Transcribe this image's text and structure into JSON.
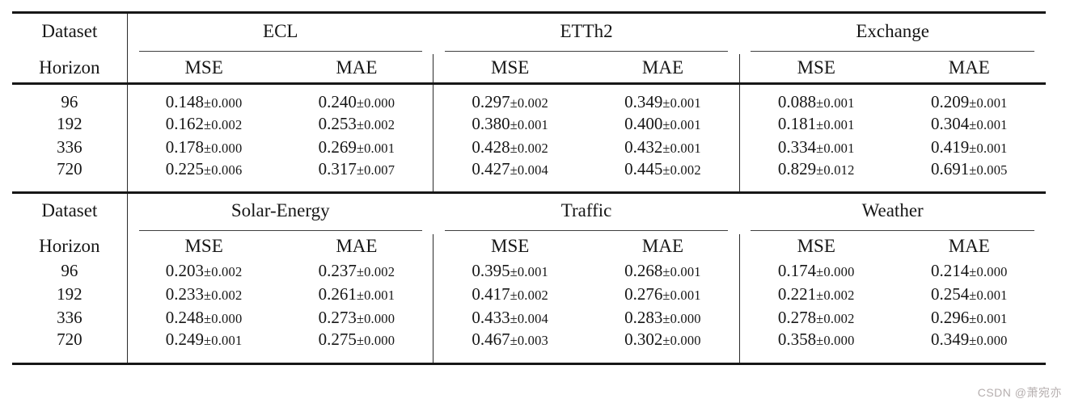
{
  "watermark": "CSDN @萧宛亦",
  "table": {
    "corner_label": "Dataset",
    "horizon_label": "Horizon",
    "sections": [
      {
        "groups": [
          {
            "name": "ECL"
          },
          {
            "name": "ETTh2"
          },
          {
            "name": "Exchange"
          }
        ],
        "metric_labels": [
          "MSE",
          "MAE",
          "MSE",
          "MAE",
          "MSE",
          "MAE"
        ],
        "rows": [
          {
            "horizon": "96",
            "values": [
              {
                "mean": "0.148",
                "std": "±0.000"
              },
              {
                "mean": "0.240",
                "std": "±0.000"
              },
              {
                "mean": "0.297",
                "std": "±0.002"
              },
              {
                "mean": "0.349",
                "std": "±0.001"
              },
              {
                "mean": "0.088",
                "std": "±0.001"
              },
              {
                "mean": "0.209",
                "std": "±0.001"
              }
            ]
          },
          {
            "horizon": "192",
            "values": [
              {
                "mean": "0.162",
                "std": "±0.002"
              },
              {
                "mean": "0.253",
                "std": "±0.002"
              },
              {
                "mean": "0.380",
                "std": "±0.001"
              },
              {
                "mean": "0.400",
                "std": "±0.001"
              },
              {
                "mean": "0.181",
                "std": "±0.001"
              },
              {
                "mean": "0.304",
                "std": "±0.001"
              }
            ]
          },
          {
            "horizon": "336",
            "values": [
              {
                "mean": "0.178",
                "std": "±0.000"
              },
              {
                "mean": "0.269",
                "std": "±0.001"
              },
              {
                "mean": "0.428",
                "std": "±0.002"
              },
              {
                "mean": "0.432",
                "std": "±0.001"
              },
              {
                "mean": "0.334",
                "std": "±0.001"
              },
              {
                "mean": "0.419",
                "std": "±0.001"
              }
            ]
          },
          {
            "horizon": "720",
            "values": [
              {
                "mean": "0.225",
                "std": "±0.006"
              },
              {
                "mean": "0.317",
                "std": "±0.007"
              },
              {
                "mean": "0.427",
                "std": "±0.004"
              },
              {
                "mean": "0.445",
                "std": "±0.002"
              },
              {
                "mean": "0.829",
                "std": "±0.012"
              },
              {
                "mean": "0.691",
                "std": "±0.005"
              }
            ]
          }
        ]
      },
      {
        "groups": [
          {
            "name": "Solar-Energy"
          },
          {
            "name": "Traffic"
          },
          {
            "name": "Weather"
          }
        ],
        "metric_labels": [
          "MSE",
          "MAE",
          "MSE",
          "MAE",
          "MSE",
          "MAE"
        ],
        "rows": [
          {
            "horizon": "96",
            "values": [
              {
                "mean": "0.203",
                "std": "±0.002"
              },
              {
                "mean": "0.237",
                "std": "±0.002"
              },
              {
                "mean": "0.395",
                "std": "±0.001"
              },
              {
                "mean": "0.268",
                "std": "±0.001"
              },
              {
                "mean": "0.174",
                "std": "±0.000"
              },
              {
                "mean": "0.214",
                "std": "±0.000"
              }
            ]
          },
          {
            "horizon": "192",
            "values": [
              {
                "mean": "0.233",
                "std": "±0.002"
              },
              {
                "mean": "0.261",
                "std": "±0.001"
              },
              {
                "mean": "0.417",
                "std": "±0.002"
              },
              {
                "mean": "0.276",
                "std": "±0.001"
              },
              {
                "mean": "0.221",
                "std": "±0.002"
              },
              {
                "mean": "0.254",
                "std": "±0.001"
              }
            ]
          },
          {
            "horizon": "336",
            "values": [
              {
                "mean": "0.248",
                "std": "±0.000"
              },
              {
                "mean": "0.273",
                "std": "±0.000"
              },
              {
                "mean": "0.433",
                "std": "±0.004"
              },
              {
                "mean": "0.283",
                "std": "±0.000"
              },
              {
                "mean": "0.278",
                "std": "±0.002"
              },
              {
                "mean": "0.296",
                "std": "±0.001"
              }
            ]
          },
          {
            "horizon": "720",
            "values": [
              {
                "mean": "0.249",
                "std": "±0.001"
              },
              {
                "mean": "0.275",
                "std": "±0.000"
              },
              {
                "mean": "0.467",
                "std": "±0.003"
              },
              {
                "mean": "0.302",
                "std": "±0.000"
              },
              {
                "mean": "0.358",
                "std": "±0.000"
              },
              {
                "mean": "0.349",
                "std": "±0.000"
              }
            ]
          }
        ]
      }
    ]
  }
}
